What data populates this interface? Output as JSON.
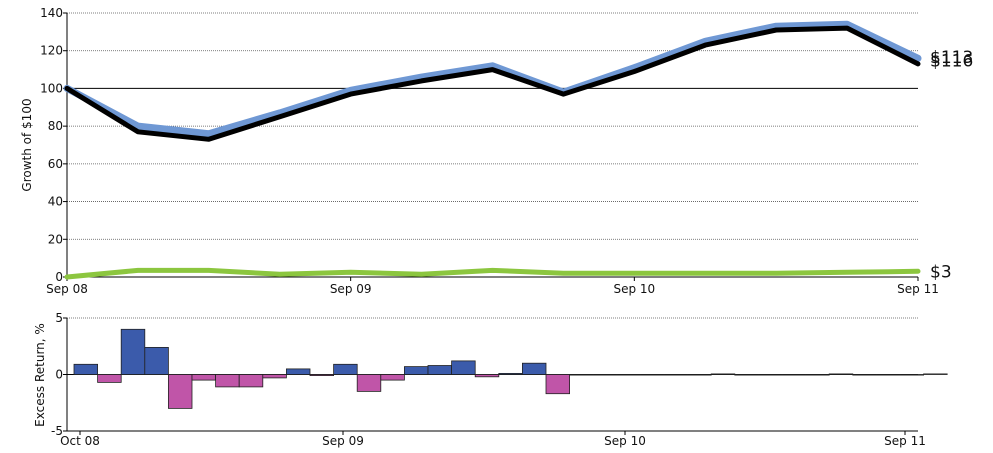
{
  "chart_data": [
    {
      "type": "line",
      "xlabel": "",
      "ylabel": "Growth of $100",
      "ylim": [
        0,
        140
      ],
      "yticks": [
        "0",
        "20",
        "40",
        "60",
        "80",
        "100",
        "120",
        "140"
      ],
      "xticks": [
        "Sep 08",
        "Sep 09",
        "Sep 10",
        "Sep 11"
      ],
      "grid": true,
      "x": [
        0,
        0.25,
        0.5,
        0.75,
        1.0,
        1.25,
        1.5,
        1.75,
        2.0,
        2.25,
        2.5,
        2.75,
        3.0
      ],
      "series": [
        {
          "name": "",
          "color": "#6f98d4",
          "values": [
            100,
            80,
            76,
            87,
            99,
            106,
            112,
            98,
            111,
            125,
            133,
            134,
            116
          ],
          "end_label": "$116"
        },
        {
          "name": "",
          "color": "#000000",
          "values": [
            100,
            77,
            73,
            85,
            97,
            104,
            110,
            97,
            109,
            123,
            131,
            132,
            113
          ],
          "end_label": "$113"
        },
        {
          "name": "",
          "color": "#8cc63f",
          "values": [
            0,
            3.5,
            3.5,
            1.5,
            2.5,
            1.5,
            3.5,
            2,
            2,
            2,
            2,
            2.5,
            3
          ],
          "end_label": "$3"
        }
      ]
    },
    {
      "type": "bar",
      "xlabel": "",
      "ylabel": "Excess Return, %",
      "ylim": [
        -5,
        5
      ],
      "yticks": [
        "-5",
        "0",
        "5"
      ],
      "xticks": [
        "Oct 08",
        "Sep 09",
        "Sep 10",
        "Sep 11"
      ],
      "grid": true,
      "positive_color": "#3b5bab",
      "negative_color": "#c055a8",
      "values": [
        0.9,
        -0.7,
        4.0,
        2.4,
        -3.0,
        -0.5,
        -1.1,
        -1.1,
        -0.3,
        0.5,
        -0.1,
        0.9,
        -1.5,
        -0.5,
        0.7,
        0.8,
        1.2,
        -0.2,
        0.1,
        1.0,
        -1.7,
        0,
        0,
        0,
        0,
        0,
        0,
        0.05,
        0,
        0,
        0,
        0,
        0.05,
        0,
        0,
        0,
        0.05
      ]
    }
  ]
}
